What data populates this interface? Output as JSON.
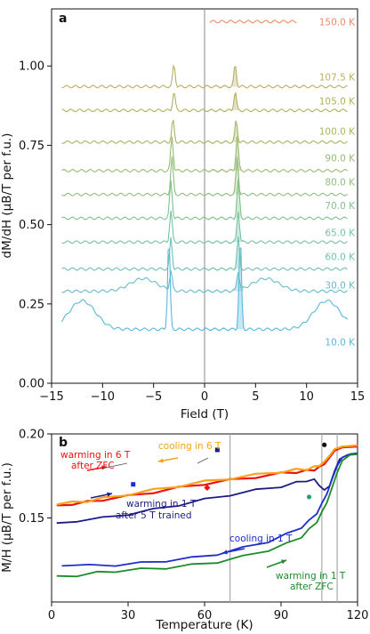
{
  "chart_data": [
    {
      "panel": "a",
      "type": "line",
      "title": "",
      "xlabel": "Field (T)",
      "ylabel": "dM/dH (μB/T per f.u.)",
      "xlim": [
        -15,
        15
      ],
      "ylim": [
        0,
        1.18
      ],
      "xticks": [
        "−15",
        "−10",
        "−5",
        "0",
        "5",
        "10",
        "15"
      ],
      "yticks": [
        "0.00",
        "0.25",
        "0.50",
        "0.75",
        "1.00"
      ],
      "grid": false,
      "legend": "none",
      "series": [
        {
          "name": "10.0 K",
          "color": "#59b7df",
          "baseline": 0.17,
          "label_y": 0.13,
          "xmin": -14,
          "xmax": 14,
          "peak_field": 3.5,
          "peak_height": 0.29,
          "hump_field": 12,
          "hump_height": 0.09
        },
        {
          "name": "30.0 K",
          "color": "#65bccb",
          "baseline": 0.29,
          "label_y": 0.31,
          "xmin": -14,
          "xmax": 14,
          "peak_field": 3.3,
          "peak_height": 0.06,
          "hump_field": 6,
          "hump_height": 0.04
        },
        {
          "name": "60.0 K",
          "color": "#6dc3b2",
          "baseline": 0.36,
          "label_y": 0.4,
          "xmin": -14,
          "xmax": 14,
          "peak_field": 3.3,
          "peak_height": 0.1
        },
        {
          "name": "65.0 K",
          "color": "#74c3a3",
          "baseline": 0.445,
          "label_y": 0.475,
          "xmin": -14,
          "xmax": 14,
          "peak_field": 3.3,
          "peak_height": 0.1
        },
        {
          "name": "70.0 K",
          "color": "#80c28f",
          "baseline": 0.52,
          "label_y": 0.56,
          "xmin": -14,
          "xmax": 14,
          "peak_field": 3.3,
          "peak_height": 0.12
        },
        {
          "name": "80.0 K",
          "color": "#8fbf7f",
          "baseline": 0.595,
          "label_y": 0.635,
          "xmin": -14,
          "xmax": 14,
          "peak_field": 3.2,
          "peak_height": 0.12
        },
        {
          "name": "90.0 K",
          "color": "#99bb70",
          "baseline": 0.67,
          "label_y": 0.71,
          "xmin": -14,
          "xmax": 14,
          "peak_field": 3.2,
          "peak_height": 0.11
        },
        {
          "name": "100.0 K",
          "color": "#a5b663",
          "baseline": 0.76,
          "label_y": 0.795,
          "xmin": -14,
          "xmax": 14,
          "peak_field": 3.1,
          "peak_height": 0.07
        },
        {
          "name": "105.0 K",
          "color": "#b1b05c",
          "baseline": 0.86,
          "label_y": 0.89,
          "xmin": -14,
          "xmax": 14,
          "peak_field": 3.0,
          "peak_height": 0.06
        },
        {
          "name": "107.5 K",
          "color": "#bbae62",
          "baseline": 0.935,
          "label_y": 0.965,
          "xmin": -14,
          "xmax": 14,
          "peak_field": 3.0,
          "peak_height": 0.07
        },
        {
          "name": "150.0 K",
          "color": "#ef8a62",
          "baseline": 1.14,
          "label_y": 1.14,
          "xmin": 0.5,
          "xmax": 9,
          "peak_field": 0,
          "peak_height": 0
        }
      ]
    },
    {
      "panel": "b",
      "type": "line",
      "title": "",
      "xlabel": "Temperature (K)",
      "ylabel": "M/H (μB/T per f.u.)",
      "xlim": [
        0,
        120
      ],
      "ylim": [
        0.1,
        0.2
      ],
      "xticks": [
        "0",
        "30",
        "60",
        "90",
        "120"
      ],
      "yticks": [
        "0.15",
        "0.20"
      ],
      "grid": false,
      "legend": "annotations",
      "vlines": [
        70,
        106,
        112
      ],
      "series": [
        {
          "name": "warming in 6 T after ZFC",
          "color": "#ee1111",
          "x": [
            2,
            8,
            14,
            20,
            30,
            40,
            50,
            60,
            70,
            80,
            90,
            96,
            100,
            103,
            105,
            107,
            109,
            111,
            114,
            120
          ],
          "y": [
            0.1575,
            0.1585,
            0.1595,
            0.161,
            0.163,
            0.1655,
            0.168,
            0.1705,
            0.1725,
            0.1745,
            0.1765,
            0.1775,
            0.178,
            0.179,
            0.18,
            0.182,
            0.186,
            0.19,
            0.192,
            0.1925
          ]
        },
        {
          "name": "cooling in 6 T",
          "color": "#f7a21b",
          "x": [
            2,
            8,
            14,
            20,
            30,
            40,
            50,
            60,
            70,
            80,
            90,
            96,
            100,
            103,
            105,
            107,
            109,
            111,
            114,
            120
          ],
          "y": [
            0.158,
            0.159,
            0.16,
            0.1615,
            0.164,
            0.1665,
            0.169,
            0.1715,
            0.1735,
            0.1755,
            0.1775,
            0.1785,
            0.179,
            0.18,
            0.1815,
            0.1835,
            0.187,
            0.191,
            0.1925,
            0.1932
          ]
        },
        {
          "name": "warming in 1 T after 5 T trained",
          "color": "#1c1c85",
          "x": [
            2,
            10,
            20,
            30,
            40,
            50,
            60,
            70,
            80,
            90,
            96,
            100,
            103,
            105,
            107,
            109,
            111,
            113,
            116,
            120
          ],
          "y": [
            0.147,
            0.1485,
            0.15,
            0.1525,
            0.155,
            0.158,
            0.161,
            0.164,
            0.1665,
            0.169,
            0.171,
            0.1725,
            0.1725,
            0.17,
            0.166,
            0.169,
            0.178,
            0.185,
            0.1875,
            0.188
          ]
        },
        {
          "name": "cooling in 1 T",
          "color": "#1f2ec9",
          "x": [
            4,
            15,
            25,
            35,
            45,
            55,
            65,
            75,
            85,
            92,
            98,
            101,
            104,
            106,
            108,
            110,
            112,
            114,
            117,
            120
          ],
          "y": [
            0.1215,
            0.1215,
            0.122,
            0.123,
            0.1245,
            0.126,
            0.1285,
            0.132,
            0.136,
            0.14,
            0.1445,
            0.148,
            0.153,
            0.158,
            0.165,
            0.173,
            0.181,
            0.186,
            0.188,
            0.1885
          ]
        },
        {
          "name": "warming in 1 T after ZFC",
          "color": "#1e8b2a",
          "x": [
            2,
            10,
            18,
            25,
            35,
            45,
            55,
            65,
            75,
            85,
            92,
            98,
            101,
            104,
            106,
            108,
            110,
            112,
            114,
            117,
            120
          ],
          "y": [
            0.1155,
            0.116,
            0.1175,
            0.1185,
            0.1195,
            0.1205,
            0.122,
            0.124,
            0.127,
            0.131,
            0.1345,
            0.139,
            0.143,
            0.148,
            0.153,
            0.16,
            0.168,
            0.177,
            0.184,
            0.1875,
            0.188
          ]
        }
      ],
      "annotations": [
        {
          "text": "warming in 6 T",
          "color": "#ee1111"
        },
        {
          "text": "after ZFC",
          "color": "#ee1111"
        },
        {
          "text": "cooling in 6 T",
          "color": "#f7a21b"
        },
        {
          "text": "warming in 1 T",
          "color": "#1c1c85"
        },
        {
          "text": "after 5 T trained",
          "color": "#1c1c85"
        },
        {
          "text": "cooling in 1 T",
          "color": "#1f2ec9"
        },
        {
          "text": "warming in 1 T",
          "color": "#1e8b2a"
        },
        {
          "text": "after ZFC",
          "color": "#1e8b2a"
        }
      ],
      "markers": [
        {
          "shape": "square",
          "color": "#1f2ec9",
          "x": 32,
          "y": 0.17
        },
        {
          "shape": "square",
          "color": "#1c1c85",
          "x": 65,
          "y": 0.1905
        },
        {
          "shape": "diamond",
          "color": "#ee1111",
          "x": 61,
          "y": 0.168
        },
        {
          "shape": "circle",
          "color": "#111111",
          "x": 107,
          "y": 0.1935
        },
        {
          "shape": "circle",
          "color": "#2a9d7a",
          "x": 101,
          "y": 0.1625
        }
      ]
    }
  ]
}
